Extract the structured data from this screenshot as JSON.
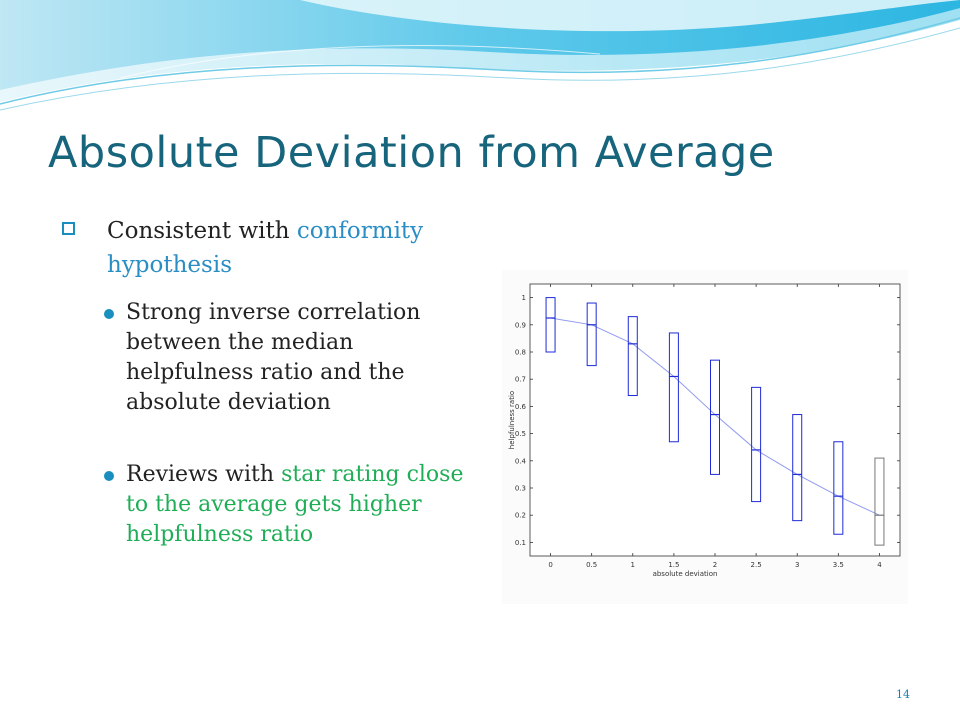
{
  "slide": {
    "title": "Absolute Deviation from Average",
    "bullet": {
      "prefix": "Consistent with ",
      "accent": "conformity hypothesis"
    },
    "sub_bullets": [
      {
        "text": "Strong inverse correlation between the median helpfulness ratio and the absolute deviation"
      },
      {
        "prefix": "Reviews with ",
        "accent": "star rating close to the average gets higher helpfulness ratio"
      }
    ],
    "page_number": "14"
  },
  "colors": {
    "title": "#17657d",
    "bullet_icon": "#1a8fbf",
    "accent_blue": "#2a8ec4",
    "accent_green": "#1fae57",
    "box_blue": "#1f2ad8",
    "box_gray": "#777777",
    "median_line": "#8f9af0"
  },
  "chart_data": {
    "type": "boxplot",
    "xlabel": "absolute deviation",
    "ylabel": "helpfulness ratio",
    "categories": [
      "0",
      "0.5",
      "1",
      "1.5",
      "2",
      "2.5",
      "3",
      "3.5",
      "4"
    ],
    "yticks": [
      "0.1",
      "0.2",
      "0.3",
      "0.4",
      "0.5",
      "0.6",
      "0.7",
      "0.8",
      "0.9",
      "1"
    ],
    "ylim": [
      0.05,
      1.05
    ],
    "boxes": [
      {
        "x": 0,
        "q1": 0.8,
        "median": 0.925,
        "q3": 1.0,
        "color": "blue"
      },
      {
        "x": 0.5,
        "q1": 0.75,
        "median": 0.9,
        "q3": 0.98,
        "color": "blue"
      },
      {
        "x": 1,
        "q1": 0.64,
        "median": 0.83,
        "q3": 0.93,
        "color": "blue"
      },
      {
        "x": 1.5,
        "q1": 0.47,
        "median": 0.71,
        "q3": 0.87,
        "color": "blue"
      },
      {
        "x": 2,
        "q1": 0.35,
        "median": 0.57,
        "q3": 0.77,
        "color": "blue"
      },
      {
        "x": 2.5,
        "q1": 0.25,
        "median": 0.44,
        "q3": 0.67,
        "color": "blue"
      },
      {
        "x": 3,
        "q1": 0.18,
        "median": 0.35,
        "q3": 0.57,
        "color": "blue"
      },
      {
        "x": 3.5,
        "q1": 0.13,
        "median": 0.27,
        "q3": 0.47,
        "color": "blue"
      },
      {
        "x": 4,
        "q1": 0.09,
        "median": 0.2,
        "q3": 0.41,
        "color": "gray"
      }
    ],
    "median_trend": true,
    "grid": false
  }
}
